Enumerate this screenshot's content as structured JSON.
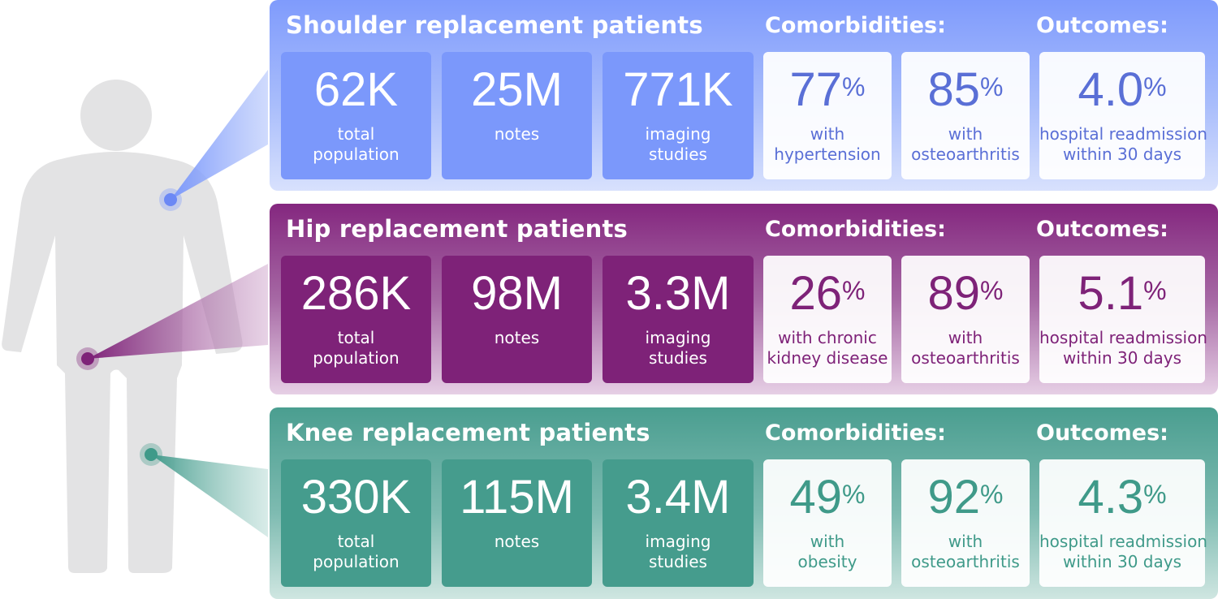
{
  "colors": {
    "shoulder_accent": "#7b98fb",
    "hip_accent": "#7e2278",
    "knee_accent": "#459c8d",
    "figure_gray": "#e3e3e4"
  },
  "figure": {
    "icon": "human-body-icon"
  },
  "panels": [
    {
      "title": "Shoulder replacement patients",
      "comorbidities_label": "Comorbidities:",
      "outcomes_label": "Outcomes:",
      "stats": [
        {
          "value": "62K",
          "line1": "total",
          "line2": "population"
        },
        {
          "value": "25M",
          "line1": "notes",
          "line2": ""
        },
        {
          "value": "771K",
          "line1": "imaging",
          "line2": "studies"
        }
      ],
      "comorbidities": [
        {
          "value": "77",
          "unit": "%",
          "line1": "with",
          "line2": "hypertension"
        },
        {
          "value": "85",
          "unit": "%",
          "line1": "with",
          "line2": "osteoarthritis"
        }
      ],
      "outcome": {
        "value": "4.0",
        "unit": "%",
        "line1": "hospital readmission",
        "line2": "within 30 days"
      }
    },
    {
      "title": "Hip replacement patients",
      "comorbidities_label": "Comorbidities:",
      "outcomes_label": "Outcomes:",
      "stats": [
        {
          "value": "286K",
          "line1": "total",
          "line2": "population"
        },
        {
          "value": "98M",
          "line1": "notes",
          "line2": ""
        },
        {
          "value": "3.3M",
          "line1": "imaging",
          "line2": "studies"
        }
      ],
      "comorbidities": [
        {
          "value": "26",
          "unit": "%",
          "line1": "with chronic",
          "line2": "kidney disease"
        },
        {
          "value": "89",
          "unit": "%",
          "line1": "with",
          "line2": "osteoarthritis"
        }
      ],
      "outcome": {
        "value": "5.1",
        "unit": "%",
        "line1": "hospital readmission",
        "line2": "within 30 days"
      }
    },
    {
      "title": "Knee replacement patients",
      "comorbidities_label": "Comorbidities:",
      "outcomes_label": "Outcomes:",
      "stats": [
        {
          "value": "330K",
          "line1": "total",
          "line2": "population"
        },
        {
          "value": "115M",
          "line1": "notes",
          "line2": ""
        },
        {
          "value": "3.4M",
          "line1": "imaging",
          "line2": "studies"
        }
      ],
      "comorbidities": [
        {
          "value": "49",
          "unit": "%",
          "line1": "with",
          "line2": "obesity"
        },
        {
          "value": "92",
          "unit": "%",
          "line1": "with",
          "line2": "osteoarthritis"
        }
      ],
      "outcome": {
        "value": "4.3",
        "unit": "%",
        "line1": "hospital readmission",
        "line2": "within 30 days"
      }
    }
  ]
}
